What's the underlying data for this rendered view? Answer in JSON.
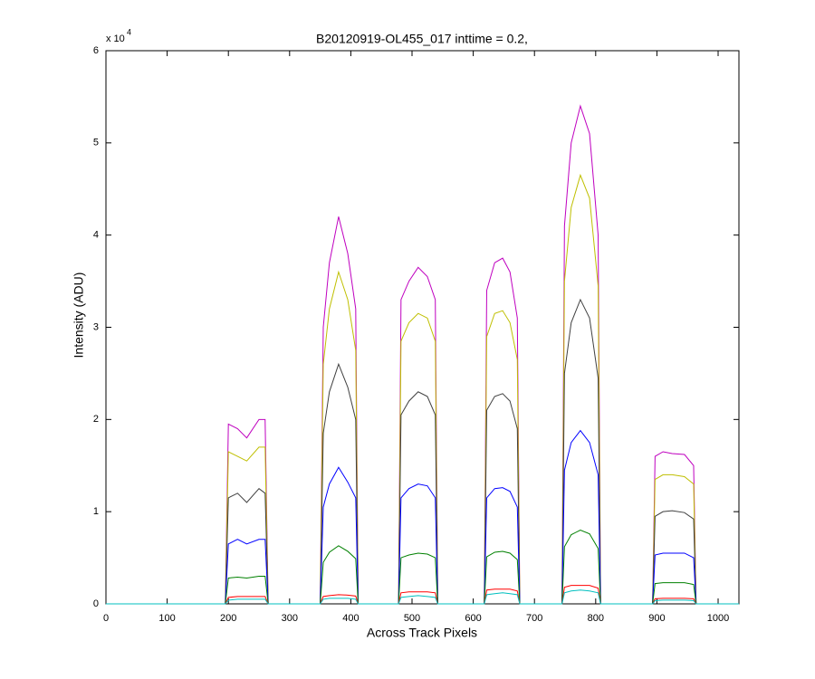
{
  "chart_data": {
    "type": "line",
    "title": "B20120919-OL455_017 inttime = 0.2,",
    "x_label": "Across Track Pixels",
    "y_label": "Intensity (ADU)",
    "y_scale_label": "x 10",
    "y_scale_exponent": "4",
    "xlim": [
      0,
      1034
    ],
    "ylim": [
      0,
      60000
    ],
    "xticks": [
      0,
      100,
      200,
      300,
      400,
      500,
      600,
      700,
      800,
      900,
      1000
    ],
    "yticks": [
      0,
      {
        "value": 10000,
        "label": "1"
      },
      {
        "value": 20000,
        "label": "2"
      },
      {
        "value": 30000,
        "label": "3"
      },
      {
        "value": 40000,
        "label": "4"
      },
      {
        "value": 50000,
        "label": "5"
      },
      {
        "value": 60000,
        "label": "6"
      }
    ],
    "grid": false,
    "x": [
      0,
      195,
      200,
      215,
      230,
      250,
      260,
      265,
      350,
      355,
      365,
      380,
      395,
      408,
      412,
      478,
      482,
      495,
      510,
      525,
      538,
      542,
      618,
      622,
      635,
      648,
      660,
      672,
      676,
      745,
      749,
      760,
      775,
      790,
      804,
      808,
      893,
      897,
      910,
      925,
      945,
      960,
      964,
      1034
    ],
    "series": [
      {
        "color": "#bf00bf",
        "values": [
          0,
          0,
          19500,
          19000,
          18000,
          20000,
          20000,
          0,
          0,
          30000,
          37000,
          42000,
          38000,
          32000,
          0,
          0,
          33000,
          35000,
          36500,
          35500,
          33000,
          0,
          0,
          34000,
          37000,
          37500,
          36000,
          31000,
          0,
          0,
          41000,
          50000,
          54000,
          51000,
          40000,
          0,
          0,
          16000,
          16500,
          16300,
          16200,
          15000,
          0,
          0
        ]
      },
      {
        "color": "#bfbf00",
        "values": [
          0,
          0,
          16500,
          16000,
          15500,
          17000,
          17000,
          0,
          0,
          26000,
          32000,
          36000,
          33000,
          27500,
          0,
          0,
          28500,
          30500,
          31500,
          31000,
          28500,
          0,
          0,
          29000,
          31500,
          31800,
          30500,
          26500,
          0,
          0,
          35000,
          43000,
          46500,
          44000,
          34500,
          0,
          0,
          13500,
          14000,
          14000,
          13800,
          13000,
          0,
          0
        ]
      },
      {
        "color": "#404040",
        "values": [
          0,
          0,
          11500,
          12000,
          11000,
          12500,
          12000,
          0,
          0,
          18500,
          23000,
          26000,
          23500,
          20000,
          0,
          0,
          20500,
          22000,
          23000,
          22500,
          20500,
          0,
          0,
          21000,
          22500,
          22800,
          22000,
          19000,
          0,
          0,
          25000,
          30500,
          33000,
          31000,
          24500,
          0,
          0,
          9500,
          10000,
          10100,
          9900,
          9200,
          0,
          0
        ]
      },
      {
        "color": "#0000ff",
        "values": [
          0,
          0,
          6500,
          7000,
          6500,
          7000,
          7000,
          0,
          0,
          10500,
          13000,
          14800,
          13200,
          11500,
          0,
          0,
          11500,
          12500,
          13000,
          12800,
          11500,
          0,
          0,
          11500,
          12500,
          12600,
          12200,
          10500,
          0,
          0,
          14500,
          17500,
          18800,
          17500,
          14000,
          0,
          0,
          5300,
          5500,
          5500,
          5500,
          5000,
          0,
          0
        ]
      },
      {
        "color": "#008000",
        "values": [
          0,
          0,
          2800,
          2900,
          2800,
          3000,
          3000,
          0,
          0,
          4500,
          5600,
          6300,
          5700,
          4900,
          0,
          0,
          5000,
          5300,
          5500,
          5400,
          5000,
          0,
          0,
          5100,
          5600,
          5700,
          5500,
          4800,
          0,
          0,
          6200,
          7500,
          8000,
          7600,
          6000,
          0,
          0,
          2200,
          2300,
          2300,
          2300,
          2100,
          0,
          0
        ]
      },
      {
        "color": "#ff0000",
        "values": [
          0,
          0,
          700,
          800,
          800,
          800,
          800,
          0,
          0,
          800,
          900,
          1000,
          950,
          850,
          0,
          0,
          1200,
          1300,
          1300,
          1300,
          1200,
          0,
          0,
          1500,
          1600,
          1600,
          1600,
          1400,
          0,
          0,
          1800,
          2000,
          2000,
          2000,
          1700,
          0,
          0,
          550,
          600,
          600,
          600,
          550,
          0,
          0
        ]
      },
      {
        "color": "#00bfbf",
        "values": [
          0,
          0,
          400,
          500,
          500,
          500,
          500,
          0,
          0,
          500,
          600,
          600,
          600,
          500,
          0,
          0,
          700,
          800,
          900,
          800,
          700,
          0,
          0,
          1000,
          1100,
          1200,
          1100,
          1000,
          0,
          0,
          1200,
          1400,
          1500,
          1400,
          1200,
          0,
          0,
          350,
          400,
          400,
          400,
          350,
          0,
          0
        ]
      }
    ]
  }
}
